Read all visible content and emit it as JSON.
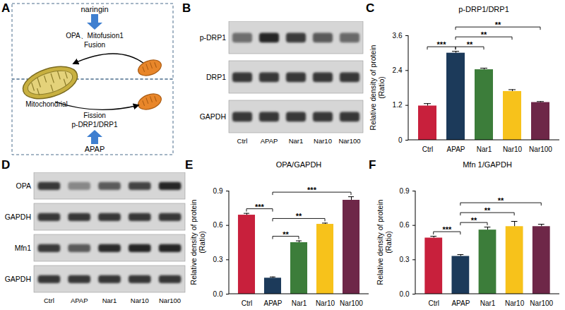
{
  "panel_labels": [
    "A",
    "B",
    "C",
    "D",
    "E",
    "F"
  ],
  "diagram": {
    "treatment_top": "naringin",
    "fusion_proteins": "OPA、Mitofusion1",
    "fusion": "Fusion",
    "organelle": "Mitochondrial",
    "fission": "Fission",
    "fission_proteins": "p-DRP1/DRP1",
    "treatment_bottom": "APAP"
  },
  "blots": [
    {
      "rows": [
        "p-DRP1",
        "DRP1",
        "GAPDH"
      ],
      "lanes": [
        "Ctrl",
        "APAP",
        "Nar1",
        "Nar10",
        "Nar100"
      ]
    },
    {
      "rows": [
        "OPA",
        "GAPDH",
        "Mfn1",
        "GAPDH"
      ],
      "lanes": [
        "Ctrl",
        "APAP",
        "Nar1",
        "Nar10",
        "Nar100"
      ]
    }
  ],
  "chart_data": [
    {
      "type": "bar",
      "title": "p-DRP1/DRP1",
      "y_label": "Relative density of protein\n(Ratio)",
      "categories": [
        "Ctrl",
        "APAP",
        "Nar1",
        "Nar10",
        "Nar100"
      ],
      "values": [
        1.18,
        3.0,
        2.43,
        1.68,
        1.3
      ],
      "errors": [
        0.08,
        0.06,
        0.05,
        0.06,
        0.03
      ],
      "colors": [
        "#c8203c",
        "#1c3a5a",
        "#3c7d3a",
        "#f7c21b",
        "#6e2748"
      ],
      "ylim": [
        0,
        3.6
      ],
      "yticks": [
        0,
        1.2,
        2.4,
        3.6
      ],
      "annotations": [
        {
          "from": "Ctrl",
          "to": "APAP",
          "label": "***"
        },
        {
          "from": "APAP",
          "to": "Nar1",
          "label": "**"
        },
        {
          "from": "APAP",
          "to": "Nar10",
          "label": "**"
        },
        {
          "from": "APAP",
          "to": "Nar100",
          "label": "**"
        }
      ]
    },
    {
      "type": "bar",
      "title": "OPA/GAPDH",
      "y_label": "Relative density of protein\n(Ratio)",
      "categories": [
        "Ctrl",
        "APAP",
        "Nar1",
        "Nar10",
        "Nar100"
      ],
      "values": [
        0.69,
        0.14,
        0.45,
        0.61,
        0.82
      ],
      "errors": [
        0.015,
        0.01,
        0.015,
        0.01,
        0.03
      ],
      "colors": [
        "#c8203c",
        "#1c3a5a",
        "#3c7d3a",
        "#f7c21b",
        "#6e2748"
      ],
      "ylim": [
        0,
        0.9
      ],
      "yticks": [
        {
          "value": 0,
          "label": "0.0"
        },
        {
          "value": 0.3,
          "label": "0.3"
        },
        {
          "value": 0.6,
          "label": "0.6"
        },
        {
          "value": 0.9,
          "label": "0.9"
        }
      ],
      "annotations": [
        {
          "from": "Ctrl",
          "to": "APAP",
          "label": "***"
        },
        {
          "from": "APAP",
          "to": "Nar1",
          "label": "**"
        },
        {
          "from": "APAP",
          "to": "Nar10",
          "label": "**"
        },
        {
          "from": "APAP",
          "to": "Nar100",
          "label": "***"
        }
      ]
    },
    {
      "type": "bar",
      "title": "Mfn 1/GAPDH",
      "y_label": "Relative density of protein\n(Ratio)",
      "categories": [
        "Ctrl",
        "APAP",
        "Nar1",
        "Nar10",
        "Nar100"
      ],
      "values": [
        0.49,
        0.33,
        0.56,
        0.59,
        0.59
      ],
      "errors": [
        0.015,
        0.015,
        0.025,
        0.045,
        0.02
      ],
      "colors": [
        "#c8203c",
        "#1c3a5a",
        "#3c7d3a",
        "#f7c21b",
        "#6e2748"
      ],
      "ylim": [
        0,
        0.9
      ],
      "yticks": [
        {
          "value": 0,
          "label": "0.0"
        },
        {
          "value": 0.3,
          "label": "0.3"
        },
        {
          "value": 0.6,
          "label": "0.6"
        },
        {
          "value": 0.9,
          "label": "0.9"
        }
      ],
      "annotations": [
        {
          "from": "Ctrl",
          "to": "APAP",
          "label": "***"
        },
        {
          "from": "APAP",
          "to": "Nar1",
          "label": "**"
        },
        {
          "from": "APAP",
          "to": "Nar10",
          "label": "**"
        },
        {
          "from": "APAP",
          "to": "Nar100",
          "label": "**"
        }
      ]
    }
  ]
}
